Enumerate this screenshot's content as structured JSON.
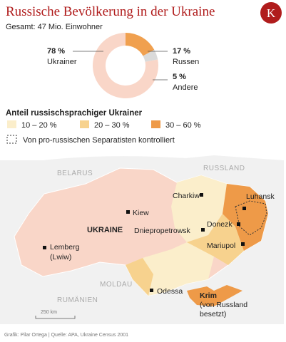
{
  "chart_data": {
    "type": "pie",
    "title": "Russische Bevölkerung in der Ukraine",
    "subtitle": "Gesamt: 47 Mio. Einwohner",
    "categories": [
      "Ukrainer",
      "Russen",
      "Andere"
    ],
    "values": [
      78,
      17,
      5
    ],
    "value_labels": [
      "78 %",
      "17 %",
      "5 %"
    ],
    "colors": [
      "#f9d6c8",
      "#f0a04f",
      "#dadada"
    ]
  },
  "logo": "K",
  "legend": {
    "title": "Anteil russischsprachiger Ukrainer",
    "items": [
      {
        "label": "10 – 20 %",
        "color": "#fbeecb"
      },
      {
        "label": "20 – 30 %",
        "color": "#f7d28e"
      },
      {
        "label": "30 – 60 %",
        "color": "#ee9a48"
      }
    ],
    "separatists": "Von pro-russischen Separatisten kontrolliert"
  },
  "map": {
    "countries": [
      "BELARUS",
      "RUSSLAND",
      "UKRAINE",
      "MOLDAU",
      "RUMÄNIEN"
    ],
    "cities": [
      "Charkiw",
      "Kiew",
      "Luhansk",
      "Donezk",
      "Dniepropetrowsk",
      "Mariupol",
      "Lemberg",
      "(Lwiw)",
      "Odessa"
    ],
    "crimea": [
      "Krim",
      "(von Russland",
      "besetzt)"
    ],
    "scale": "250 km"
  },
  "source": "Grafik: Pilar Ortega | Quelle: APA, Ukraine Census 2001"
}
